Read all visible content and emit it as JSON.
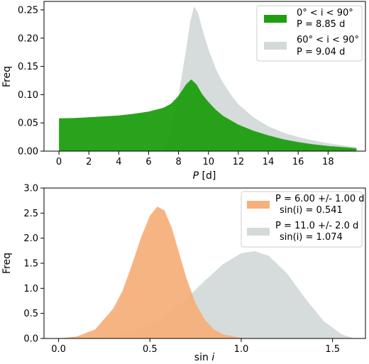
{
  "chart_data": [
    {
      "type": "area",
      "xlabel": "P [d]",
      "ylabel": "Freq",
      "xlim": [
        -1,
        20.5
      ],
      "ylim": [
        0,
        0.265
      ],
      "xticks": [
        0,
        2,
        4,
        6,
        8,
        10,
        12,
        14,
        16,
        18
      ],
      "yticks": [
        0.0,
        0.05,
        0.1,
        0.15,
        0.2,
        0.25
      ],
      "ytick_labels": [
        "0.00",
        "0.05",
        "0.10",
        "0.15",
        "0.20",
        "0.25"
      ],
      "legend_position": "top-right",
      "series": [
        {
          "legend_line1": "0° < i < 90°",
          "legend_line2": "P = 8.85 d",
          "color": "#1f9e10",
          "x": [
            0,
            1,
            2,
            3,
            4,
            5,
            6,
            7,
            7.5,
            8,
            8.5,
            8.85,
            9.2,
            9.6,
            10,
            10.5,
            11,
            12,
            13,
            14,
            15,
            16,
            17,
            18,
            19,
            19.9
          ],
          "y": [
            0.058,
            0.0585,
            0.06,
            0.0615,
            0.063,
            0.066,
            0.07,
            0.077,
            0.084,
            0.098,
            0.118,
            0.127,
            0.118,
            0.1,
            0.087,
            0.073,
            0.062,
            0.047,
            0.036,
            0.028,
            0.021,
            0.016,
            0.012,
            0.009,
            0.007,
            0.005
          ]
        },
        {
          "legend_line1": "60° < i < 90°",
          "legend_line2": "P = 9.04 d",
          "color": "#d4d9d9",
          "x": [
            7.0,
            7.3,
            7.6,
            7.9,
            8.2,
            8.5,
            8.8,
            9.04,
            9.3,
            9.6,
            10,
            10.5,
            11,
            11.5,
            12,
            13,
            14,
            15,
            16,
            17,
            18,
            19,
            19.9
          ],
          "y": [
            0.0,
            0.02,
            0.05,
            0.085,
            0.13,
            0.18,
            0.232,
            0.256,
            0.245,
            0.215,
            0.18,
            0.145,
            0.12,
            0.1,
            0.083,
            0.06,
            0.044,
            0.033,
            0.025,
            0.019,
            0.014,
            0.01,
            0.007
          ]
        }
      ]
    },
    {
      "type": "area",
      "xlabel": "sin i",
      "ylabel": "Freq",
      "xlim": [
        -0.08,
        1.68
      ],
      "ylim": [
        0,
        3.0
      ],
      "xticks": [
        0.0,
        0.5,
        1.0,
        1.5
      ],
      "xtick_labels": [
        "0.0",
        "0.5",
        "1.0",
        "1.5"
      ],
      "yticks": [
        0.0,
        0.5,
        1.0,
        1.5,
        2.0,
        2.5,
        3.0
      ],
      "ytick_labels": [
        "0.0",
        "0.5",
        "1.0",
        "1.5",
        "2.0",
        "2.5",
        "3.0"
      ],
      "legend_position": "top-right",
      "series": [
        {
          "legend_line1": "P = 6.00 +/- 1.00 d",
          "legend_line2": "sin(i) = 0.541",
          "color": "#f7b07c",
          "x": [
            0.0,
            0.1,
            0.2,
            0.3,
            0.35,
            0.4,
            0.45,
            0.5,
            0.541,
            0.58,
            0.62,
            0.66,
            0.7,
            0.75,
            0.8,
            0.85,
            0.9,
            1.0,
            1.1
          ],
          "y": [
            0.0,
            0.04,
            0.18,
            0.6,
            0.95,
            1.45,
            2.0,
            2.45,
            2.63,
            2.55,
            2.2,
            1.7,
            1.2,
            0.7,
            0.38,
            0.18,
            0.08,
            0.01,
            0.0
          ]
        },
        {
          "legend_line1": "P = 11.0 +/- 2.0 d",
          "legend_line2": "sin(i) = 1.074",
          "color": "#d4d9d9",
          "x": [
            0.1,
            0.3,
            0.5,
            0.6,
            0.7,
            0.8,
            0.9,
            1.0,
            1.074,
            1.15,
            1.25,
            1.35,
            1.45,
            1.55,
            1.62
          ],
          "y": [
            0.0,
            0.05,
            0.27,
            0.5,
            0.8,
            1.15,
            1.48,
            1.7,
            1.74,
            1.65,
            1.3,
            0.8,
            0.35,
            0.08,
            0.0
          ]
        }
      ]
    }
  ]
}
